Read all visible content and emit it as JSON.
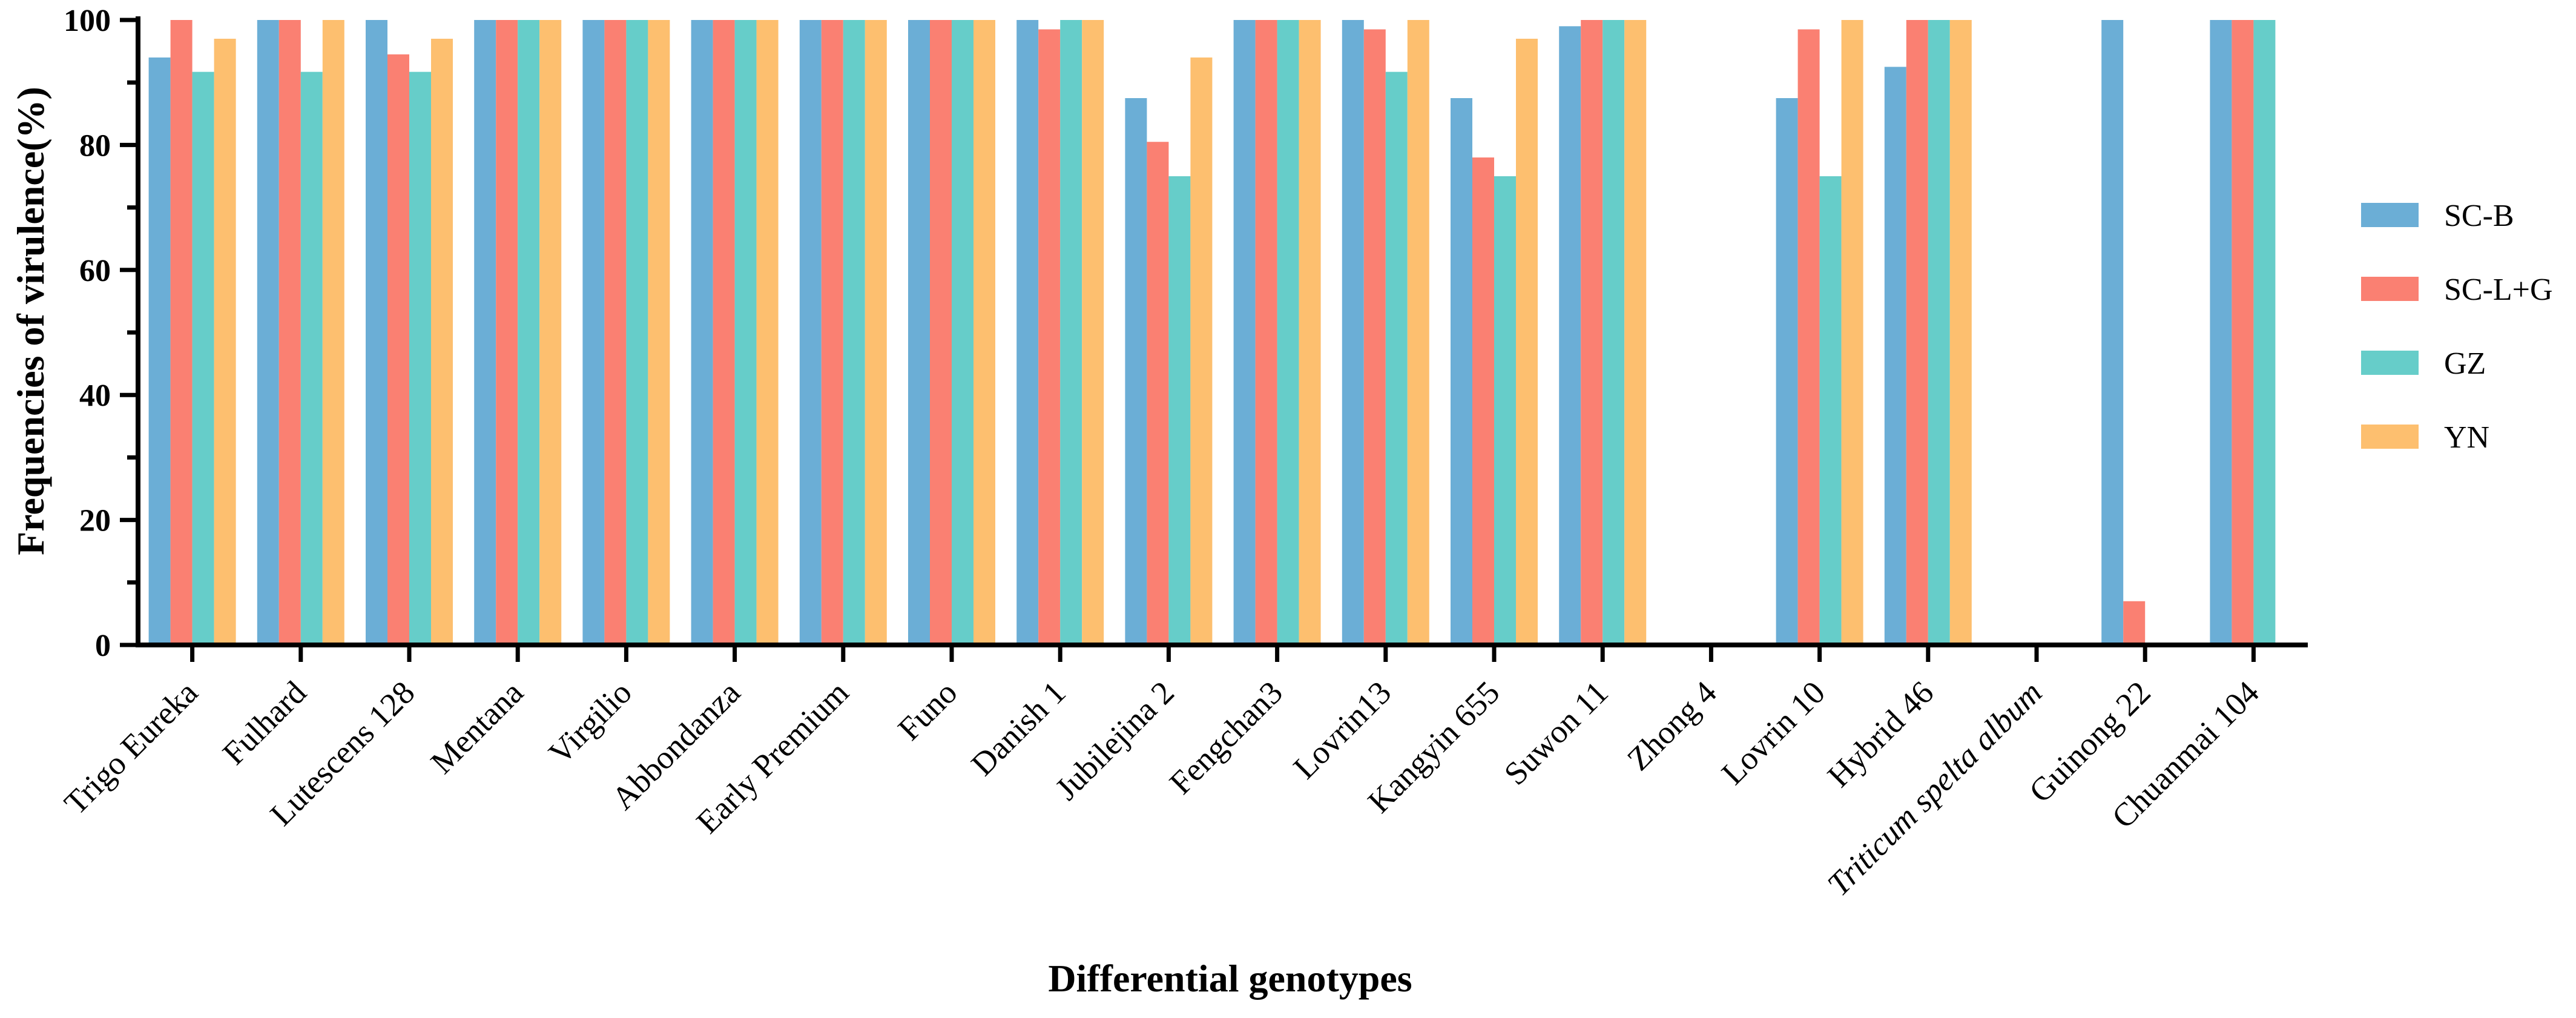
{
  "chart_data": {
    "type": "bar",
    "title": "",
    "xlabel": "Differential genotypes",
    "ylabel": "Frequencies of virulence(%)",
    "ylim": [
      0,
      100
    ],
    "yticks": [
      0,
      20,
      40,
      60,
      80,
      100
    ],
    "grid": false,
    "legend_position": "right",
    "categories": [
      "Trigo Eureka",
      "Fulhard",
      "Lutescens 128",
      "Mentana",
      "Virgilio",
      "Abbondanza",
      "Early Premium",
      "Funo",
      "Danish 1",
      "Jubilejina 2",
      "Fengchan3",
      "Lovrin13",
      "Kangyin 655",
      "Suwon 11",
      "Zhong 4",
      "Lovrin 10",
      "Hybrid 46",
      "Triticum spelta album",
      "Guinong 22",
      "Chuanmai 104"
    ],
    "italic_categories": [
      "Triticum spelta album"
    ],
    "series": [
      {
        "name": "SC-B",
        "color": "#6BAED6",
        "values": [
          94,
          100,
          100,
          100,
          100,
          100,
          100,
          100,
          100,
          87.5,
          100,
          100,
          87.5,
          99,
          0,
          87.5,
          92.5,
          0,
          100,
          100
        ]
      },
      {
        "name": "SC-L+G",
        "color": "#FA8072",
        "values": [
          100,
          100,
          94.5,
          100,
          100,
          100,
          100,
          100,
          98.5,
          80.5,
          100,
          98.5,
          78,
          100,
          0,
          98.5,
          100,
          0,
          7,
          100
        ]
      },
      {
        "name": "GZ",
        "color": "#66CDC9",
        "values": [
          91.7,
          91.7,
          91.7,
          100,
          100,
          100,
          100,
          100,
          100,
          75,
          100,
          91.7,
          75,
          100,
          0,
          75,
          100,
          0,
          0,
          100
        ]
      },
      {
        "name": "YN",
        "color": "#FDBF6F",
        "values": [
          97,
          100,
          97,
          100,
          100,
          100,
          100,
          100,
          100,
          94,
          100,
          100,
          97,
          100,
          0,
          100,
          100,
          0,
          0,
          0
        ]
      }
    ]
  }
}
